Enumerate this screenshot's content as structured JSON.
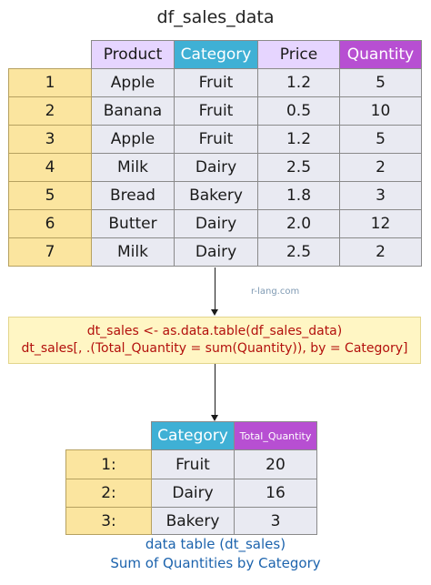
{
  "top": {
    "title": "df_sales_data",
    "headers": [
      "Product",
      "Category",
      "Price",
      "Quantity"
    ],
    "rows": [
      {
        "index": "1",
        "product": "Apple",
        "category": "Fruit",
        "price": "1.2",
        "quantity": "5"
      },
      {
        "index": "2",
        "product": "Banana",
        "category": "Fruit",
        "price": "0.5",
        "quantity": "10"
      },
      {
        "index": "3",
        "product": "Apple",
        "category": "Fruit",
        "price": "1.2",
        "quantity": "5"
      },
      {
        "index": "4",
        "product": "Milk",
        "category": "Dairy",
        "price": "2.5",
        "quantity": "2"
      },
      {
        "index": "5",
        "product": "Bread",
        "category": "Bakery",
        "price": "1.8",
        "quantity": "3"
      },
      {
        "index": "6",
        "product": "Butter",
        "category": "Dairy",
        "price": "2.0",
        "quantity": "12"
      },
      {
        "index": "7",
        "product": "Milk",
        "category": "Dairy",
        "price": "2.5",
        "quantity": "2"
      }
    ]
  },
  "watermark": "r-lang.com",
  "code": {
    "line1": "dt_sales <- as.data.table(df_sales_data)",
    "line2": "dt_sales[, .(Total_Quantity = sum(Quantity)), by = Category]"
  },
  "bottom": {
    "headers": [
      "Category",
      "Total_Quantity"
    ],
    "rows": [
      {
        "index": "1:",
        "category": "Fruit",
        "total": "20"
      },
      {
        "index": "2:",
        "category": "Dairy",
        "total": "16"
      },
      {
        "index": "3:",
        "category": "Bakery",
        "total": "3"
      }
    ],
    "caption_line1": "data table (dt_sales)",
    "caption_line2": "Sum of Quantities by Category"
  },
  "colors": {
    "index_bg": "#fbe59f",
    "cell_bg": "#e9eaf2",
    "header_light_purple": "#e6d5ff",
    "header_blue": "#3fb0d5",
    "header_purple": "#b74fd2",
    "code_bg": "#fff6c4",
    "code_text": "#b3100c",
    "caption_text": "#1c63ad"
  }
}
